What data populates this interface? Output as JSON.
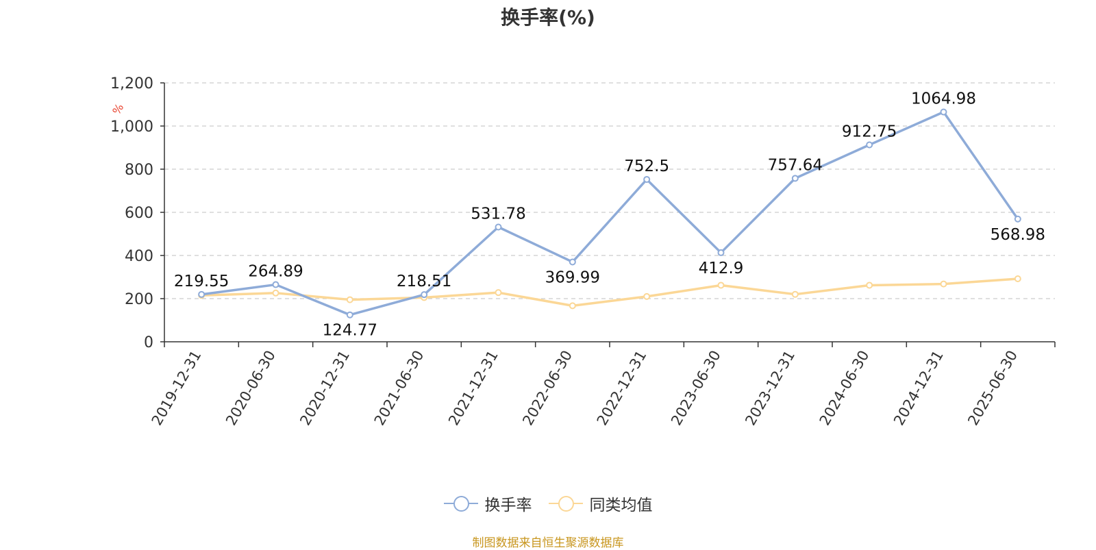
{
  "chart_data": {
    "type": "line",
    "title": "换手率(%)",
    "ylabel": "%",
    "xlabel": "",
    "ylim": [
      0,
      1200
    ],
    "y_ticks": [
      0,
      200,
      400,
      600,
      800,
      1000,
      1200
    ],
    "y_tick_labels": [
      "0",
      "200",
      "400",
      "600",
      "800",
      "1,000",
      "1,200"
    ],
    "categories": [
      "2019-12-31",
      "2020-06-30",
      "2020-12-31",
      "2021-06-30",
      "2021-12-31",
      "2022-06-30",
      "2022-12-31",
      "2023-06-30",
      "2023-12-31",
      "2024-06-30",
      "2024-12-31",
      "2025-06-30"
    ],
    "grid": true,
    "legend_position": "bottom",
    "series": [
      {
        "name": "换手率",
        "color": "#8eabd8",
        "values": [
          219.55,
          264.89,
          124.77,
          218.51,
          531.78,
          369.99,
          752.5,
          412.9,
          757.64,
          912.75,
          1064.98,
          568.98
        ],
        "labels": [
          "219.55",
          "264.89",
          "124.77",
          "218.51",
          "531.78",
          "369.99",
          "752.5",
          "412.9",
          "757.64",
          "912.75",
          "1064.98",
          "568.98"
        ]
      },
      {
        "name": "同类均值",
        "color": "#fbd796",
        "values": [
          215,
          226,
          195,
          205,
          228,
          167,
          210,
          262,
          220,
          262,
          268,
          292
        ]
      }
    ]
  },
  "source_text": "制图数据来自恒生聚源数据库"
}
